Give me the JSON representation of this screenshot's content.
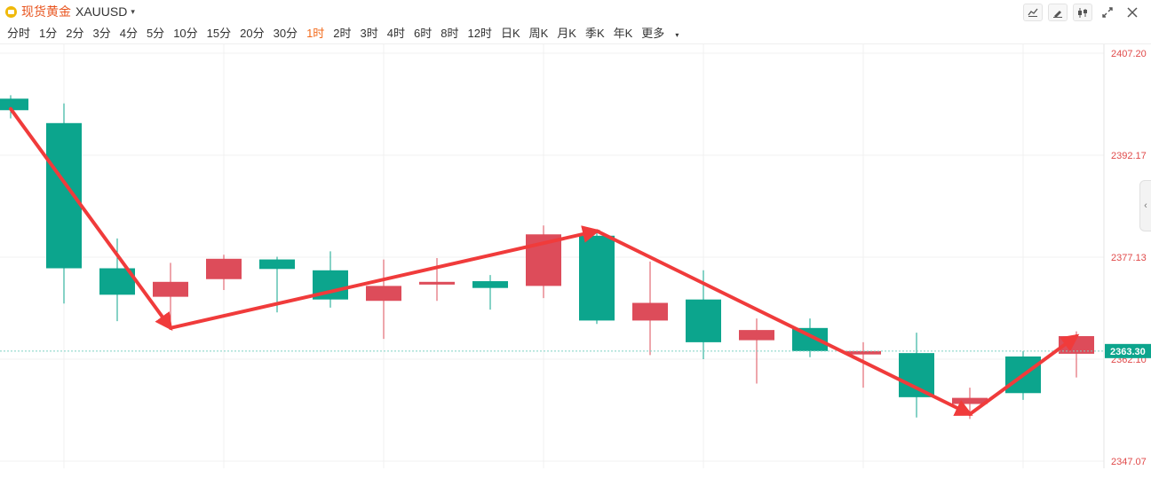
{
  "header": {
    "name": "现货黄金",
    "code": "XAUUSD",
    "caret": "▾"
  },
  "toolbar": {
    "icons": [
      "line-chart-icon",
      "pen-icon",
      "candlestick-icon",
      "fullscreen-icon",
      "close-icon"
    ]
  },
  "periods": [
    "分时",
    "1分",
    "2分",
    "3分",
    "4分",
    "5分",
    "10分",
    "15分",
    "20分",
    "30分",
    "1时",
    "2时",
    "3时",
    "4时",
    "6时",
    "8时",
    "12时",
    "日K",
    "周K",
    "月K",
    "季K",
    "年K"
  ],
  "periods_active": "1时",
  "more_label": "更多",
  "colors": {
    "up": "#0ca58d",
    "down": "#dd4c5a",
    "arrow": "#f03b3b",
    "grid": "#f1f1f1",
    "axis_text": "#e04a4a",
    "last_price_bg": "#0ca58d"
  },
  "chart_data": {
    "type": "candlestick",
    "ylim": [
      2347.07,
      2407.2
    ],
    "y_ticks": [
      2407.2,
      2392.17,
      2377.13,
      2362.1,
      2347.07
    ],
    "y_tick_labels": [
      "2407.20",
      "2392.17",
      "2377.13",
      "2362.10",
      "2347.07"
    ],
    "last_price": 2363.3,
    "last_price_label": "2363.30",
    "grid": true,
    "candles": [
      {
        "open": 2398.8,
        "close": 2400.5,
        "high": 2401.0,
        "low": 2397.6
      },
      {
        "open": 2375.5,
        "close": 2396.9,
        "high": 2399.8,
        "low": 2370.3
      },
      {
        "open": 2371.6,
        "close": 2375.5,
        "high": 2379.9,
        "low": 2367.7
      },
      {
        "open": 2373.5,
        "close": 2371.3,
        "high": 2376.3,
        "low": 2367.3
      },
      {
        "open": 2376.9,
        "close": 2373.9,
        "high": 2377.5,
        "low": 2372.3
      },
      {
        "open": 2375.4,
        "close": 2376.8,
        "high": 2377.2,
        "low": 2369.0
      },
      {
        "open": 2370.9,
        "close": 2375.2,
        "high": 2378.0,
        "low": 2369.7
      },
      {
        "open": 2372.9,
        "close": 2370.7,
        "high": 2376.8,
        "low": 2365.1
      },
      {
        "open": 2373.5,
        "close": 2373.1,
        "high": 2377.0,
        "low": 2370.7
      },
      {
        "open": 2372.6,
        "close": 2373.6,
        "high": 2374.5,
        "low": 2369.4
      },
      {
        "open": 2380.5,
        "close": 2372.9,
        "high": 2381.8,
        "low": 2371.1
      },
      {
        "open": 2367.8,
        "close": 2380.3,
        "high": 2381.0,
        "low": 2367.3
      },
      {
        "open": 2370.4,
        "close": 2367.8,
        "high": 2376.5,
        "low": 2362.7
      },
      {
        "open": 2364.6,
        "close": 2370.9,
        "high": 2375.2,
        "low": 2362.1
      },
      {
        "open": 2366.4,
        "close": 2364.9,
        "high": 2368.1,
        "low": 2358.5
      },
      {
        "open": 2363.3,
        "close": 2366.7,
        "high": 2368.1,
        "low": 2362.4
      },
      {
        "open": 2363.3,
        "close": 2362.8,
        "high": 2364.6,
        "low": 2357.9
      },
      {
        "open": 2356.5,
        "close": 2363.0,
        "high": 2366.0,
        "low": 2353.5
      },
      {
        "open": 2356.4,
        "close": 2355.5,
        "high": 2357.9,
        "low": 2353.3
      },
      {
        "open": 2357.1,
        "close": 2362.5,
        "high": 2363.3,
        "low": 2356.1
      },
      {
        "open": 2365.5,
        "close": 2362.9,
        "high": 2366.2,
        "low": 2359.4
      }
    ],
    "annotations": [
      {
        "from": [
          0,
          2399.0
        ],
        "to": [
          3,
          2366.7
        ]
      },
      {
        "from": [
          3,
          2366.7
        ],
        "to": [
          11,
          2381.0
        ]
      },
      {
        "from": [
          11,
          2381.0
        ],
        "to": [
          18,
          2354.0
        ]
      },
      {
        "from": [
          18,
          2354.0
        ],
        "to": [
          20,
          2365.5
        ]
      }
    ]
  }
}
